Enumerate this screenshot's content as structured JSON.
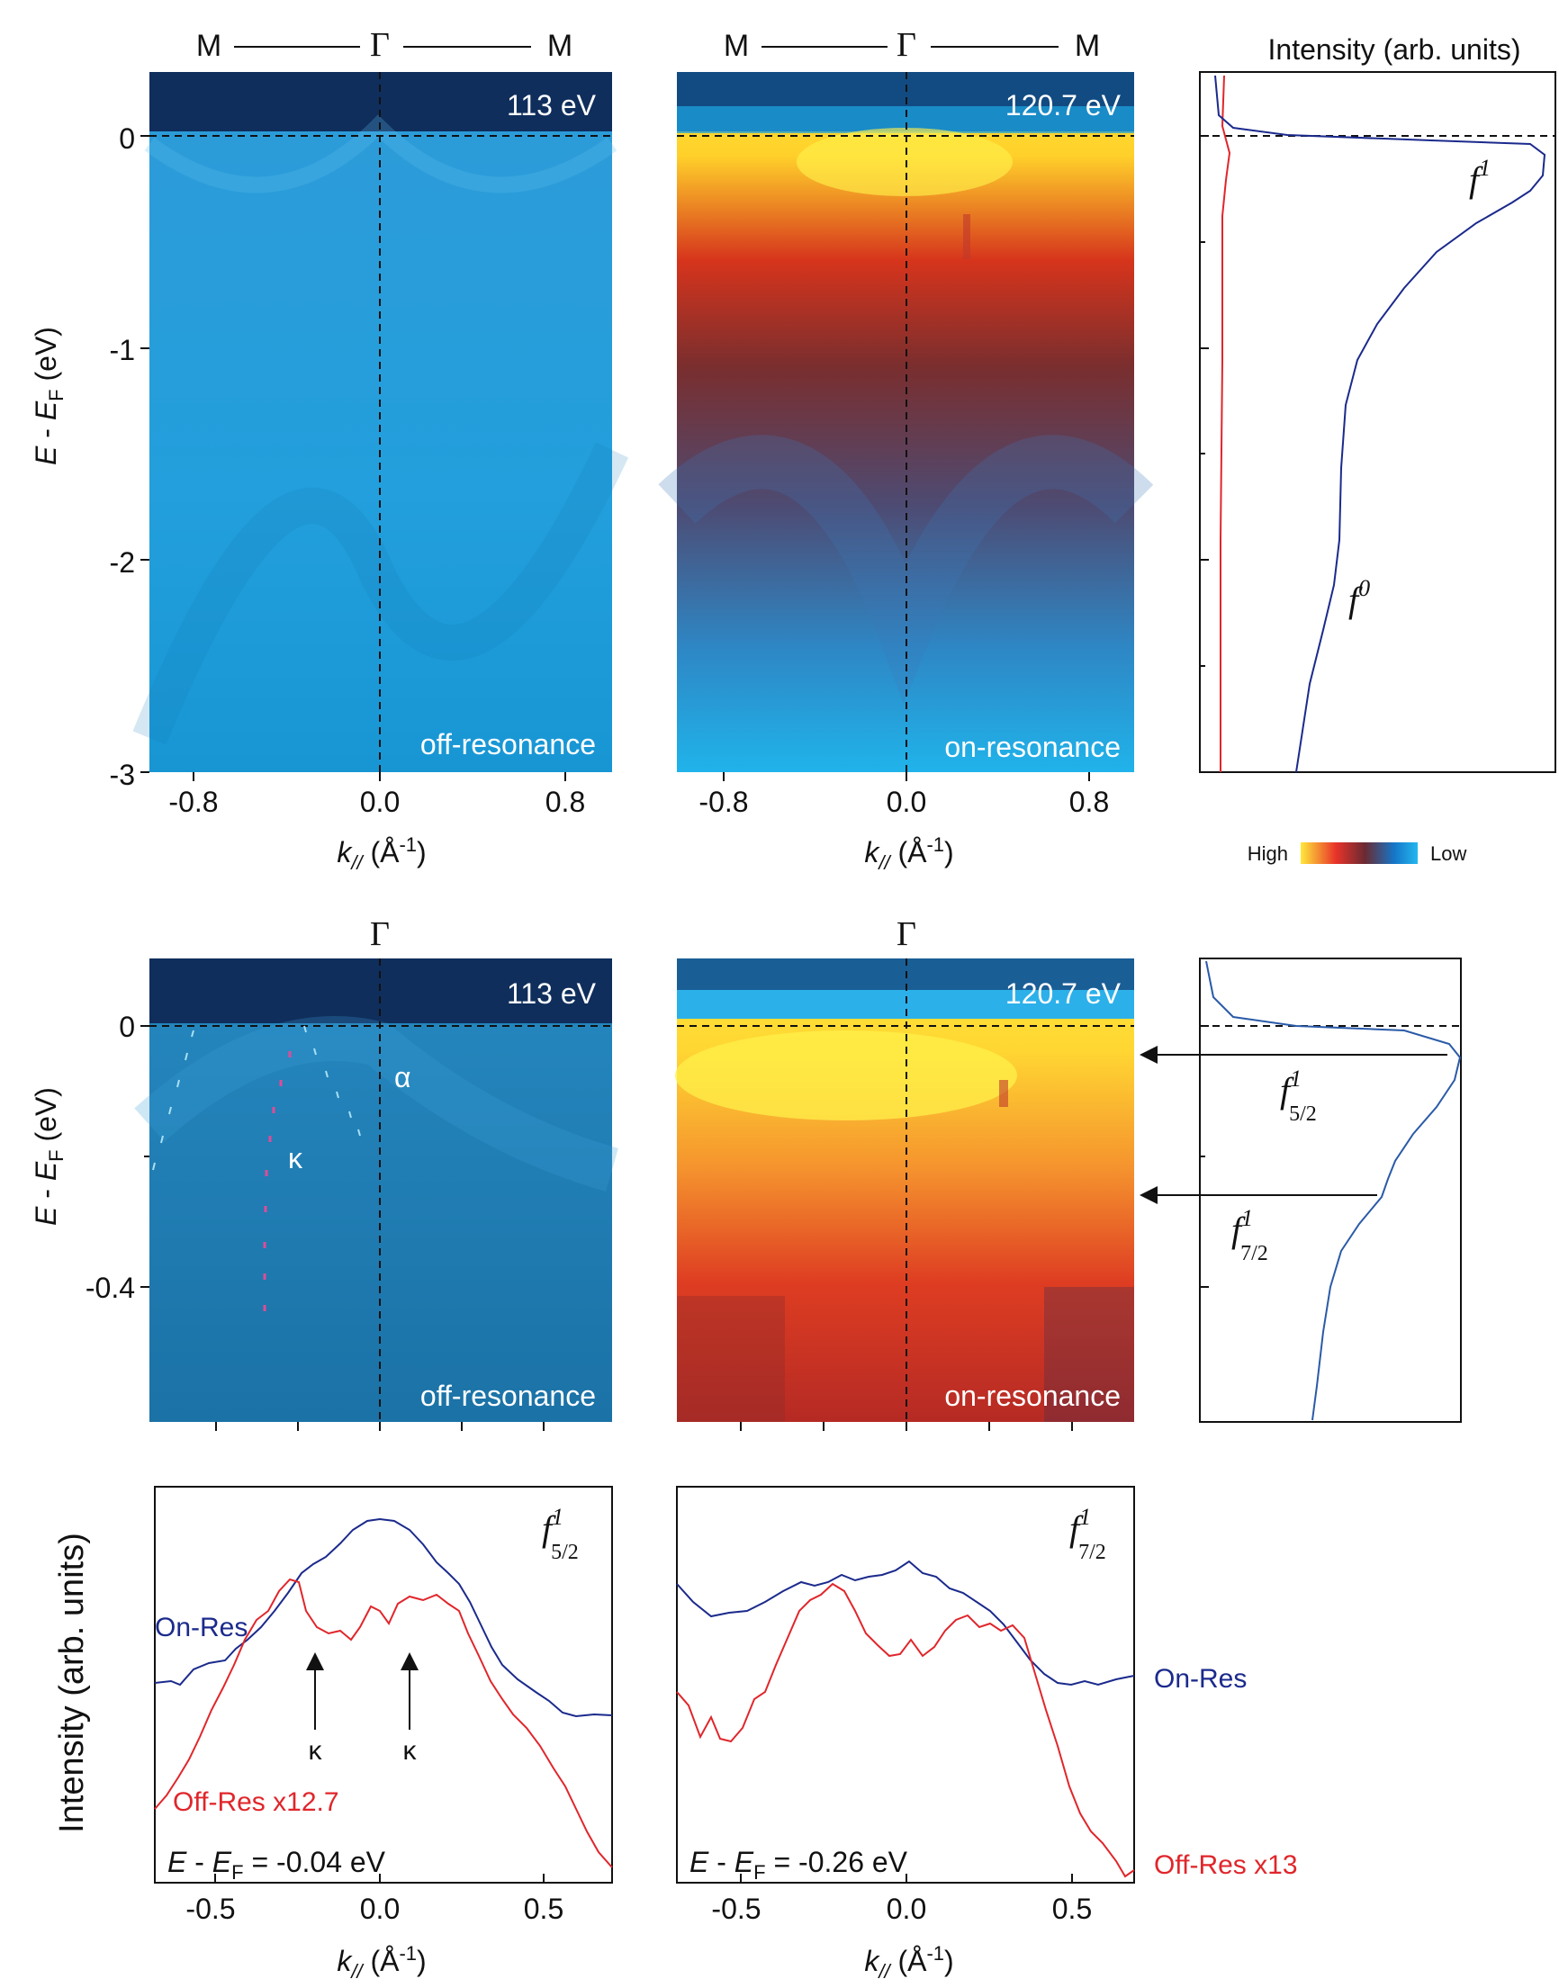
{
  "top": {
    "path_labels": {
      "m_left": "M",
      "gamma": "Γ",
      "m_right": "M"
    },
    "panel_a": {
      "energy": "113 eV",
      "mode": "off-resonance"
    },
    "panel_b": {
      "energy": "120.7 eV",
      "mode": "on-resonance"
    },
    "y_ticks": [
      "0",
      "-1",
      "-2",
      "-3"
    ],
    "x_ticks": [
      "-0.8",
      "0.0",
      "0.8"
    ],
    "ylabel": {
      "e": "E",
      "dash": " - ",
      "ef": "E",
      "sub": "F",
      "unit": " (eV)"
    },
    "xlabel": {
      "k": "k",
      "sub": "//",
      "unit": " (Å",
      "exp": "-1",
      "close": ")"
    },
    "edc_title": "Intensity (arb. units)",
    "edc_labels": {
      "f1": "f",
      "f1_sup": "1",
      "f0": "f",
      "f0_sup": "0"
    },
    "colorbar": {
      "high": "High",
      "low": "Low",
      "stops": [
        "#ffe93a",
        "#e9332a",
        "#6a2a32",
        "#1576c9",
        "#23b7ef"
      ]
    }
  },
  "middle": {
    "gamma": "Γ",
    "panel_c": {
      "energy": "113 eV",
      "mode": "off-resonance",
      "alpha": "α",
      "kappa": "κ"
    },
    "panel_d": {
      "energy": "120.7 eV",
      "mode": "on-resonance"
    },
    "y_ticks": [
      "0",
      "-0.4"
    ],
    "edc_labels": {
      "f52": "f",
      "f52_sup": "1",
      "f52_sub": "5/2",
      "f72": "f",
      "f72_sup": "1",
      "f72_sub": "7/2"
    }
  },
  "bottom": {
    "ylabel": "Intensity (arb. units)",
    "x_ticks": [
      "-0.5",
      "0.0",
      "0.5"
    ],
    "left": {
      "tag": "f",
      "tag_sup": "1",
      "tag_sub": "5/2",
      "on_label": "On-Res",
      "off_label": "Off-Res x12.7",
      "kappa1": "κ",
      "kappa2": "κ",
      "energy": {
        "e": "E",
        "dash": " - ",
        "ef": "E",
        "sub": "F",
        "val": " = -0.04 eV"
      }
    },
    "right": {
      "tag": "f",
      "tag_sup": "1",
      "tag_sub": "7/2",
      "on_label": "On-Res",
      "off_label": "Off-Res x13",
      "energy": {
        "e": "E",
        "dash": " - ",
        "ef": "E",
        "sub": "F",
        "val": " = -0.26 eV"
      }
    }
  },
  "chart_data": [
    {
      "type": "line",
      "panel": "top EDC",
      "title": "Intensity (arb. units)",
      "xlabel": "",
      "ylabel": "E - EF (eV)",
      "ylim": [
        -3,
        0.3
      ],
      "series": [
        {
          "name": "on-resonance",
          "color": "#1b2a8c",
          "points": [
            [
              0.04,
              0.3
            ],
            [
              0.05,
              0.12
            ],
            [
              0.08,
              0.05
            ],
            [
              0.25,
              0.0
            ],
            [
              0.65,
              -0.04
            ],
            [
              0.95,
              -0.08
            ],
            [
              1.0,
              -0.15
            ],
            [
              0.99,
              -0.25
            ],
            [
              0.92,
              -0.32
            ],
            [
              0.78,
              -0.45
            ],
            [
              0.62,
              -0.6
            ],
            [
              0.48,
              -0.8
            ],
            [
              0.38,
              -1.0
            ],
            [
              0.33,
              -1.2
            ],
            [
              0.31,
              -1.5
            ],
            [
              0.3,
              -2.0
            ],
            [
              0.28,
              -2.3
            ],
            [
              0.26,
              -2.6
            ],
            [
              0.24,
              -2.8
            ],
            [
              0.22,
              -3.0
            ]
          ]
        },
        {
          "name": "off-resonance",
          "color": "#e0262b",
          "points": [
            [
              0.07,
              0.3
            ],
            [
              0.06,
              0.05
            ],
            [
              0.07,
              -0.05
            ],
            [
              0.08,
              -0.2
            ],
            [
              0.06,
              -0.4
            ],
            [
              0.05,
              -0.7
            ],
            [
              0.05,
              -1.2
            ],
            [
              0.04,
              -2.0
            ],
            [
              0.04,
              -3.0
            ]
          ]
        }
      ]
    },
    {
      "type": "line",
      "panel": "middle EDC",
      "xlabel": "",
      "ylabel": "E - EF (eV)",
      "ylim": [
        -0.55,
        0.08
      ],
      "series": [
        {
          "name": "on-resonance",
          "color": "#2a5aa8",
          "points": [
            [
              0.02,
              0.08
            ],
            [
              0.04,
              0.04
            ],
            [
              0.12,
              0.01
            ],
            [
              0.45,
              -0.01
            ],
            [
              0.85,
              -0.02
            ],
            [
              1.0,
              -0.04
            ],
            [
              0.98,
              -0.07
            ],
            [
              0.85,
              -0.13
            ],
            [
              0.72,
              -0.18
            ],
            [
              0.68,
              -0.24
            ],
            [
              0.64,
              -0.28
            ],
            [
              0.56,
              -0.32
            ],
            [
              0.48,
              -0.36
            ],
            [
              0.44,
              -0.4
            ],
            [
              0.42,
              -0.46
            ],
            [
              0.4,
              -0.53
            ]
          ]
        }
      ]
    },
    {
      "type": "line",
      "panel": "bottom left",
      "xlabel": "k// (Å-1)",
      "ylabel": "Intensity (arb. units)",
      "xlim": [
        -0.7,
        0.7
      ],
      "series": [
        {
          "name": "On-Res",
          "color": "#1b2a8c",
          "x": [
            -0.7,
            -0.6,
            -0.5,
            -0.4,
            -0.3,
            -0.2,
            -0.1,
            0.0,
            0.1,
            0.2,
            0.3,
            0.4,
            0.5,
            0.6,
            0.7
          ],
          "y": [
            0.4,
            0.42,
            0.47,
            0.53,
            0.6,
            0.72,
            0.8,
            0.86,
            0.82,
            0.7,
            0.55,
            0.45,
            0.38,
            0.35,
            0.35
          ]
        },
        {
          "name": "Off-Res x12.7",
          "color": "#e0262b",
          "x": [
            -0.7,
            -0.6,
            -0.5,
            -0.4,
            -0.3,
            -0.2,
            -0.1,
            0.0,
            0.1,
            0.2,
            0.3,
            0.4,
            0.5,
            0.6,
            0.7
          ],
          "y": [
            0.05,
            0.1,
            0.2,
            0.34,
            0.55,
            0.72,
            0.58,
            0.58,
            0.65,
            0.6,
            0.42,
            0.3,
            0.2,
            0.1,
            0.02
          ]
        }
      ]
    },
    {
      "type": "line",
      "panel": "bottom right",
      "xlabel": "k// (Å-1)",
      "ylabel": "",
      "xlim": [
        -0.7,
        0.7
      ],
      "series": [
        {
          "name": "On-Res",
          "color": "#1b2a8c",
          "x": [
            -0.7,
            -0.6,
            -0.5,
            -0.4,
            -0.3,
            -0.2,
            -0.1,
            0.0,
            0.1,
            0.2,
            0.3,
            0.4,
            0.5,
            0.6,
            0.7
          ],
          "y": [
            0.62,
            0.6,
            0.62,
            0.65,
            0.68,
            0.7,
            0.7,
            0.72,
            0.7,
            0.66,
            0.58,
            0.5,
            0.48,
            0.48,
            0.48
          ]
        },
        {
          "name": "Off-Res x13",
          "color": "#e0262b",
          "x": [
            -0.7,
            -0.6,
            -0.5,
            -0.4,
            -0.3,
            -0.2,
            -0.1,
            0.0,
            0.1,
            0.2,
            0.3,
            0.4,
            0.5,
            0.6,
            0.7
          ],
          "y": [
            0.35,
            0.32,
            0.28,
            0.4,
            0.62,
            0.66,
            0.55,
            0.5,
            0.55,
            0.63,
            0.58,
            0.3,
            0.15,
            0.05,
            0.03
          ]
        }
      ]
    }
  ]
}
